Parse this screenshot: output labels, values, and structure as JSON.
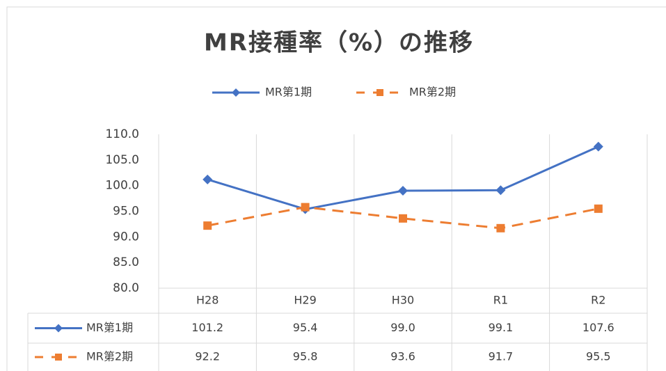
{
  "chart_data": {
    "type": "line",
    "title": "MR接種率（%）の推移",
    "categories": [
      "H28",
      "H29",
      "H30",
      "R1",
      "R2"
    ],
    "series": [
      {
        "name": "MR第1期",
        "color": "#4472c4",
        "marker": "diamond",
        "line_style": "solid",
        "values": [
          101.2,
          95.4,
          99.0,
          99.1,
          107.6
        ],
        "value_labels": [
          "101.2",
          "95.4",
          "99.0",
          "99.1",
          "107.6"
        ]
      },
      {
        "name": "MR第2期",
        "color": "#ed7d31",
        "marker": "square",
        "line_style": "dashed",
        "values": [
          92.2,
          95.8,
          93.6,
          91.7,
          95.5
        ],
        "value_labels": [
          "92.2",
          "95.8",
          "93.6",
          "91.7",
          "95.5"
        ]
      }
    ],
    "ylim": [
      80,
      110
    ],
    "yticks": [
      {
        "value": 80,
        "label": "80.0"
      },
      {
        "value": 85,
        "label": "85.0"
      },
      {
        "value": 90,
        "label": "90.0"
      },
      {
        "value": 95,
        "label": "95.0"
      },
      {
        "value": 100,
        "label": "100.0"
      },
      {
        "value": 105,
        "label": "105.0"
      },
      {
        "value": 110,
        "label": "110.0"
      }
    ],
    "grid": true,
    "legend": "top",
    "data_table": true
  }
}
